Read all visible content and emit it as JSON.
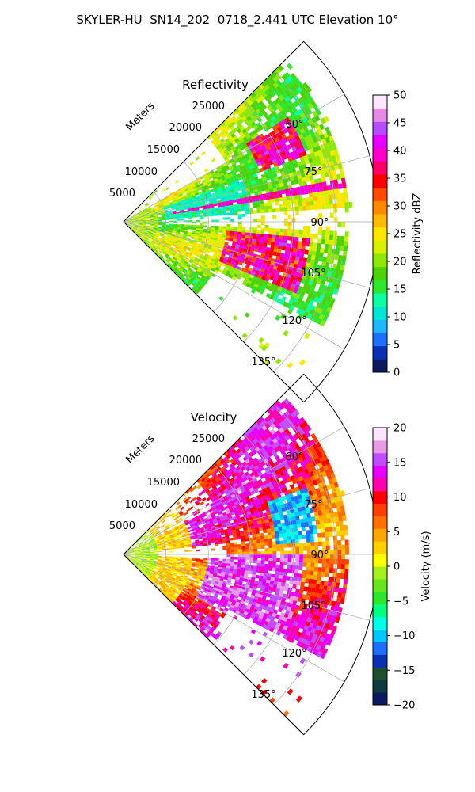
{
  "figure": {
    "title": "SKYLER-HU  SN14_202  0718_2.441 UTC Elevation 10°"
  },
  "chart_data": [
    {
      "type": "heatmap",
      "projection": "polar-sector",
      "title": "Reflectivity",
      "radial_label": "Meters",
      "radial_ticks": [
        "5000",
        "10000",
        "15000",
        "20000",
        "25000"
      ],
      "radial_tick_values": [
        5000,
        10000,
        15000,
        20000,
        25000
      ],
      "rlim": [
        0,
        30000
      ],
      "angle_range_deg": [
        45,
        135
      ],
      "angle_ticks": [
        "60°",
        "75°",
        "90°",
        "105°",
        "120°",
        "135°"
      ],
      "angle_tick_values": [
        60,
        75,
        90,
        105,
        120,
        135
      ],
      "grid": true,
      "colorbar": {
        "label": "Reflectivity dBZ",
        "range": [
          0,
          50
        ],
        "ticks": [
          "0",
          "5",
          "10",
          "15",
          "20",
          "25",
          "30",
          "35",
          "40",
          "45",
          "50"
        ],
        "tick_values": [
          0,
          5,
          10,
          15,
          20,
          25,
          30,
          35,
          40,
          45,
          50
        ],
        "colors": [
          "#0b1a5e",
          "#0a2fb0",
          "#1f6fff",
          "#1fb8ff",
          "#00e6d2",
          "#0bffa0",
          "#2ee62e",
          "#4dd10a",
          "#8fe60a",
          "#d6f000",
          "#ffe600",
          "#ffbb00",
          "#ff8a00",
          "#ff4a00",
          "#ff0000",
          "#ff0066",
          "#ff00cc",
          "#e600ff",
          "#b44dff",
          "#e68ae6",
          "#ffe6ff"
        ]
      }
    },
    {
      "type": "heatmap",
      "projection": "polar-sector",
      "title": "Velocity",
      "radial_label": "Meters",
      "radial_ticks": [
        "5000",
        "10000",
        "15000",
        "20000",
        "25000"
      ],
      "radial_tick_values": [
        5000,
        10000,
        15000,
        20000,
        25000
      ],
      "rlim": [
        0,
        30000
      ],
      "angle_range_deg": [
        45,
        135
      ],
      "angle_ticks": [
        "60°",
        "75°",
        "90°",
        "105°",
        "120°",
        "135°"
      ],
      "angle_tick_values": [
        60,
        75,
        90,
        105,
        120,
        135
      ],
      "grid": true,
      "colorbar": {
        "label": "Velocity (m/s)",
        "range": [
          -20,
          20
        ],
        "ticks": [
          "−20",
          "−15",
          "−10",
          "−5",
          "0",
          "5",
          "10",
          "15",
          "20"
        ],
        "tick_values": [
          -20,
          -15,
          -10,
          -5,
          0,
          5,
          10,
          15,
          20
        ],
        "colors": [
          "#0b1a5e",
          "#0d3a3a",
          "#1f4f2f",
          "#0a2fb0",
          "#1f6fff",
          "#00c8ff",
          "#00ffe6",
          "#00ff80",
          "#2ee62e",
          "#66e61f",
          "#a6f01f",
          "#ffff00",
          "#ffd000",
          "#ffa500",
          "#ff7000",
          "#ff4000",
          "#ff0000",
          "#ff00aa",
          "#e600ff",
          "#c04dff",
          "#e69ae6",
          "#ffe6ff"
        ]
      }
    }
  ]
}
